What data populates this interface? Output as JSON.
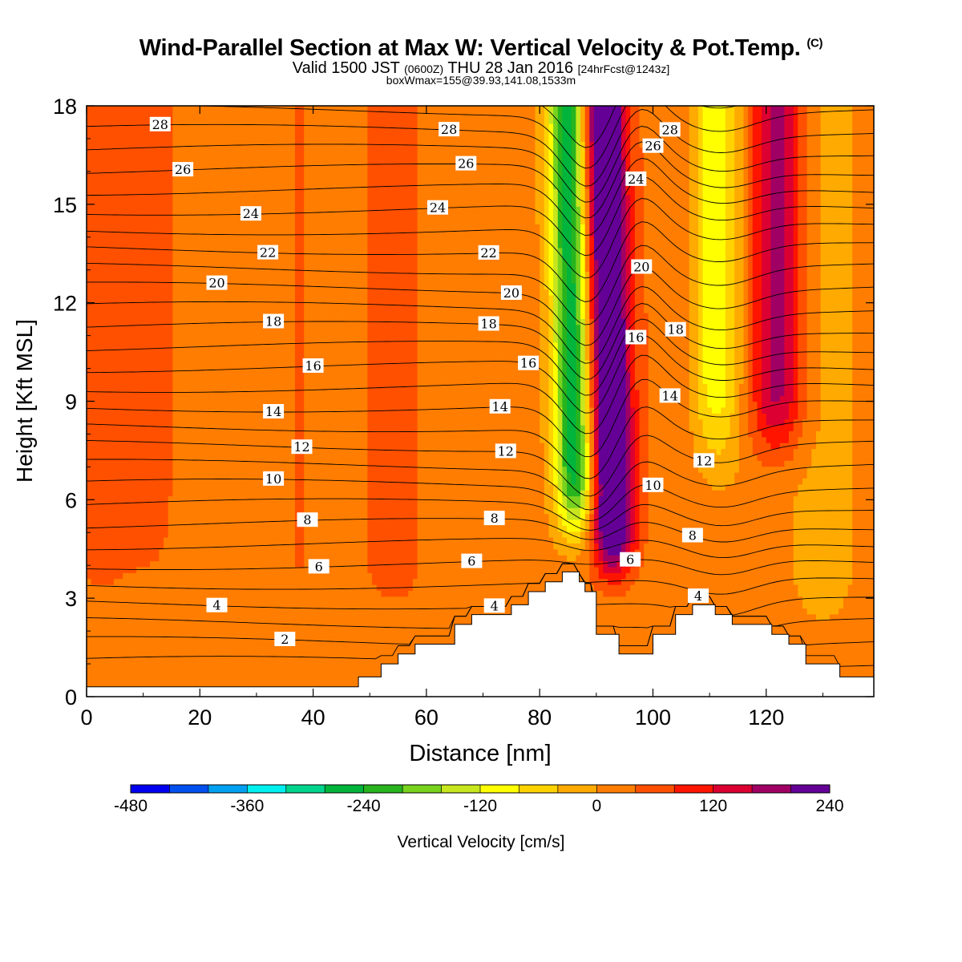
{
  "header": {
    "title": "Wind-Parallel Section at Max W: Vertical Velocity & Pot.Temp.",
    "copyright_mark": "(C)",
    "valid_prefix": "Valid 1500 JST",
    "valid_utc": "(0600Z)",
    "valid_date": "THU 28 Jan 2016",
    "forecast_info": "[24hrFcst@1243z]",
    "box_info": "boxWmax=155@39.93,141.08,1533m"
  },
  "chart_data": {
    "type": "heatmap",
    "xlabel": "Distance [nm]",
    "ylabel": "Height [Kft MSL]",
    "xlim": [
      0,
      139
    ],
    "ylim": [
      0,
      18
    ],
    "x_ticks": [
      0,
      20,
      40,
      60,
      80,
      100,
      120
    ],
    "y_ticks": [
      0,
      3,
      6,
      9,
      12,
      15,
      18
    ],
    "colorbar": {
      "label": "Vertical Velocity [cm/s]",
      "ticks": [
        -480,
        -360,
        -240,
        -120,
        0,
        120,
        240
      ],
      "bounds": [
        -480,
        240
      ],
      "colors": [
        "#0000f0",
        "#0050f0",
        "#00a0f0",
        "#00f0f0",
        "#00d48c",
        "#00b43c",
        "#28b41e",
        "#78d21e",
        "#c8e61e",
        "#ffff00",
        "#ffd200",
        "#ffaa00",
        "#ff7d00",
        "#ff5000",
        "#ff1400",
        "#dc0032",
        "#a00064",
        "#640096"
      ]
    },
    "velocity_features": [
      {
        "type": "downdraft",
        "x_center": 85,
        "min_value_cms": -240,
        "z_range": [
          4,
          18
        ]
      },
      {
        "type": "updraft",
        "x_center": 93,
        "max_value_cms": 240,
        "z_range": [
          3,
          18
        ]
      },
      {
        "type": "updraft",
        "x_center": 122,
        "max_value_cms": 120,
        "z_range": [
          6,
          18
        ]
      }
    ],
    "theta_contours": {
      "interval": 1,
      "labeled_levels": [
        2,
        4,
        6,
        8,
        10,
        12,
        14,
        16,
        18,
        20,
        22,
        24,
        26,
        28
      ]
    },
    "terrain_kft": [
      [
        0,
        0.3
      ],
      [
        48,
        0.3
      ],
      [
        48,
        0.6
      ],
      [
        52,
        0.6
      ],
      [
        52,
        1.0
      ],
      [
        55,
        1.0
      ],
      [
        55,
        1.3
      ],
      [
        58,
        1.3
      ],
      [
        58,
        1.6
      ],
      [
        65,
        1.6
      ],
      [
        65,
        2.2
      ],
      [
        68,
        2.2
      ],
      [
        68,
        2.5
      ],
      [
        75,
        2.5
      ],
      [
        75,
        2.8
      ],
      [
        78,
        2.8
      ],
      [
        78,
        3.2
      ],
      [
        81,
        3.2
      ],
      [
        81,
        3.5
      ],
      [
        84,
        3.5
      ],
      [
        84,
        3.8
      ],
      [
        87,
        3.8
      ],
      [
        87,
        3.5
      ],
      [
        88,
        3.5
      ],
      [
        88,
        3.2
      ],
      [
        90,
        3.2
      ],
      [
        90,
        1.9
      ],
      [
        94,
        1.9
      ],
      [
        94,
        1.3
      ],
      [
        100,
        1.3
      ],
      [
        100,
        1.9
      ],
      [
        104,
        1.9
      ],
      [
        104,
        2.5
      ],
      [
        107,
        2.5
      ],
      [
        107,
        2.8
      ],
      [
        111,
        2.8
      ],
      [
        111,
        2.5
      ],
      [
        114,
        2.5
      ],
      [
        114,
        2.2
      ],
      [
        121,
        2.2
      ],
      [
        121,
        1.9
      ],
      [
        124,
        1.9
      ],
      [
        124,
        1.6
      ],
      [
        127,
        1.6
      ],
      [
        127,
        1.0
      ],
      [
        133,
        1.0
      ],
      [
        133,
        0.6
      ],
      [
        139,
        0.6
      ]
    ]
  }
}
